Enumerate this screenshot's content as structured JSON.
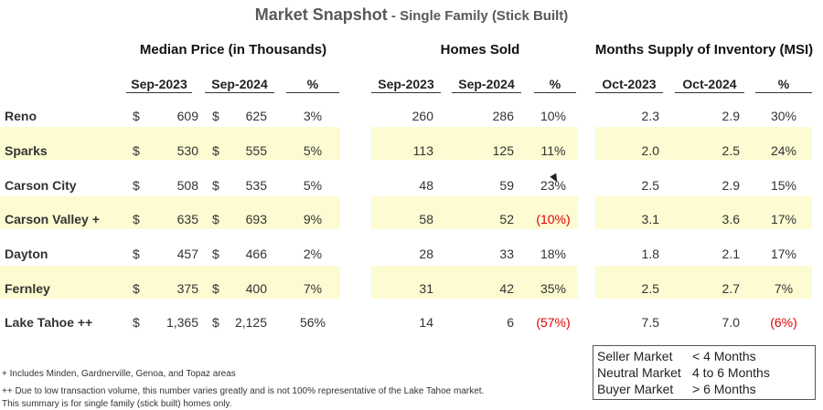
{
  "title": {
    "main": "Market Snapshot",
    "sep": " - ",
    "sub": "Single Family (Stick Built)"
  },
  "groups": {
    "price": "Median Price (in Thousands)",
    "sold": "Homes Sold",
    "msi": "Months Supply of Inventory (MSI)"
  },
  "columns": {
    "price": [
      "Sep-2023",
      "Sep-2024",
      "%"
    ],
    "sold": [
      "Sep-2023",
      "Sep-2024",
      "%"
    ],
    "msi": [
      "Oct-2023",
      "Oct-2024",
      "%"
    ]
  },
  "currency": "$",
  "rows": [
    {
      "name": "Reno",
      "p1": "609",
      "p2": "625",
      "pp": "3%",
      "s1": "260",
      "s2": "286",
      "sp": "10%",
      "m1": "2.3",
      "m2": "2.9",
      "mp": "30%"
    },
    {
      "name": "Sparks",
      "p1": "530",
      "p2": "555",
      "pp": "5%",
      "s1": "113",
      "s2": "125",
      "sp": "11%",
      "m1": "2.0",
      "m2": "2.5",
      "mp": "24%"
    },
    {
      "name": "Carson City",
      "p1": "508",
      "p2": "535",
      "pp": "5%",
      "s1": "48",
      "s2": "59",
      "sp": "23%",
      "m1": "2.5",
      "m2": "2.9",
      "mp": "15%"
    },
    {
      "name": "Carson Valley +",
      "p1": "635",
      "p2": "693",
      "pp": "9%",
      "s1": "58",
      "s2": "52",
      "sp": "(10%)",
      "m1": "3.1",
      "m2": "3.6",
      "mp": "17%"
    },
    {
      "name": "Dayton",
      "p1": "457",
      "p2": "466",
      "pp": "2%",
      "s1": "28",
      "s2": "33",
      "sp": "18%",
      "m1": "1.8",
      "m2": "2.1",
      "mp": "17%"
    },
    {
      "name": "Fernley",
      "p1": "375",
      "p2": "400",
      "pp": "7%",
      "s1": "31",
      "s2": "42",
      "sp": "35%",
      "m1": "2.5",
      "m2": "2.7",
      "mp": "7%"
    },
    {
      "name": "Lake Tahoe ++",
      "p1": "1,365",
      "p2": "2,125",
      "pp": "56%",
      "s1": "14",
      "s2": "6",
      "sp": "(57%)",
      "m1": "7.5",
      "m2": "7.0",
      "mp": "(6%)"
    }
  ],
  "colors": {
    "band": "#fdfbd2",
    "negative": "#e00000",
    "title": "#595959"
  },
  "legend": [
    {
      "label": "Seller Market",
      "value": "< 4 Months"
    },
    {
      "label": "Neutral Market",
      "value": "4 to 6 Months"
    },
    {
      "label": "Buyer Market",
      "value": "> 6  Months"
    }
  ],
  "footnotes": [
    "+ Includes Minden, Gardnerville, Genoa, and Topaz areas",
    "++ Due to low transaction volume, this number varies greatly and is not 100% representative of the Lake Tahoe market.",
    "This summary is for single family (stick built) homes only."
  ]
}
